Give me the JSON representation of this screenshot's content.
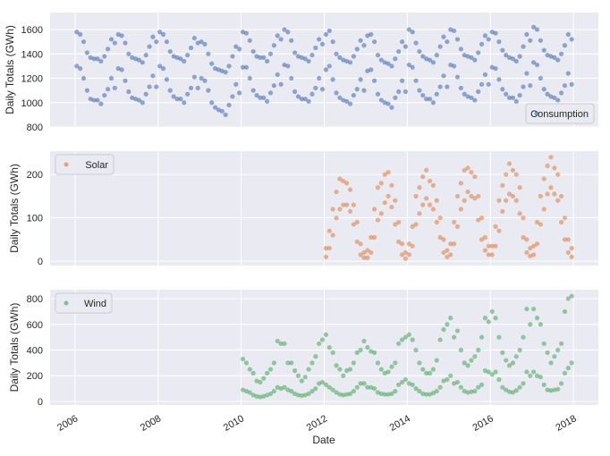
{
  "chart_data": [
    {
      "type": "scatter",
      "ylabel": "Daily Totals (GWh)",
      "xlabel": "",
      "ylim": [
        800,
        1740
      ],
      "yticks": [
        800,
        1000,
        1200,
        1400,
        1600
      ],
      "xlim": [
        2005.4,
        2018.6
      ],
      "grid": true,
      "legend": "bottom-right",
      "series": [
        {
          "name": "Consumption",
          "color": "#4c72b0",
          "monthly_weekday": {
            "2006": [
              1580,
              1560,
              1500,
              1410,
              1370,
              1360,
              1360,
              1340,
              1380,
              1440,
              1520,
              1490
            ],
            "2007": [
              1560,
              1550,
              1490,
              1400,
              1370,
              1360,
              1350,
              1330,
              1390,
              1460,
              1540,
              1500
            ],
            "2008": [
              1580,
              1560,
              1500,
              1420,
              1380,
              1370,
              1360,
              1340,
              1390,
              1450,
              1530,
              1490
            ],
            "2009": [
              1500,
              1480,
              1400,
              1320,
              1280,
              1270,
              1260,
              1250,
              1300,
              1380,
              1460,
              1440
            ],
            "2010": [
              1580,
              1570,
              1510,
              1420,
              1380,
              1370,
              1370,
              1340,
              1400,
              1470,
              1550,
              1520
            ],
            "2011": [
              1600,
              1580,
              1510,
              1410,
              1380,
              1370,
              1360,
              1340,
              1390,
              1450,
              1520,
              1480
            ],
            "2012": [
              1560,
              1590,
              1500,
              1400,
              1370,
              1350,
              1340,
              1330,
              1380,
              1440,
              1510,
              1470
            ],
            "2013": [
              1550,
              1560,
              1500,
              1390,
              1350,
              1330,
              1320,
              1300,
              1360,
              1420,
              1500,
              1460
            ],
            "2014": [
              1600,
              1580,
              1490,
              1420,
              1380,
              1360,
              1350,
              1330,
              1390,
              1460,
              1540,
              1500
            ],
            "2015": [
              1600,
              1590,
              1520,
              1440,
              1390,
              1380,
              1370,
              1350,
              1410,
              1480,
              1550,
              1520
            ],
            "2016": [
              1580,
              1570,
              1500,
              1430,
              1390,
              1370,
              1360,
              1340,
              1380,
              1460,
              1560,
              1510
            ],
            "2017": [
              1620,
              1600,
              1510,
              1430,
              1390,
              1380,
              1370,
              1350,
              1400,
              1470,
              1560,
              1520
            ]
          },
          "monthly_weekend": {
            "2006": [
              1300,
              1280,
              1200,
              1100,
              1030,
              1020,
              1020,
              990,
              1060,
              1110,
              1200,
              1120
            ],
            "2007": [
              1280,
              1270,
              1180,
              1090,
              1040,
              1030,
              1020,
              1000,
              1070,
              1130,
              1220,
              1130
            ],
            "2008": [
              1300,
              1280,
              1190,
              1100,
              1050,
              1030,
              1030,
              1000,
              1070,
              1120,
              1210,
              1120
            ],
            "2009": [
              1200,
              1180,
              1100,
              1000,
              960,
              940,
              930,
              900,
              980,
              1050,
              1150,
              1080
            ],
            "2010": [
              1290,
              1290,
              1200,
              1100,
              1060,
              1040,
              1040,
              1010,
              1080,
              1140,
              1230,
              1150
            ],
            "2011": [
              1310,
              1300,
              1200,
              1090,
              1050,
              1030,
              1030,
              1010,
              1070,
              1120,
              1200,
              1110
            ],
            "2012": [
              1270,
              1300,
              1190,
              1080,
              1040,
              1020,
              1010,
              990,
              1060,
              1110,
              1190,
              1100
            ],
            "2013": [
              1260,
              1270,
              1180,
              1070,
              1020,
              1000,
              990,
              960,
              1040,
              1090,
              1180,
              1090
            ],
            "2014": [
              1310,
              1290,
              1180,
              1100,
              1060,
              1030,
              1030,
              1000,
              1070,
              1130,
              1220,
              1130
            ],
            "2015": [
              1310,
              1300,
              1210,
              1120,
              1070,
              1050,
              1040,
              1020,
              1090,
              1150,
              1230,
              1150
            ],
            "2016": [
              1290,
              1280,
              1190,
              1110,
              1070,
              1040,
              1040,
              1010,
              1060,
              1130,
              1240,
              1140
            ],
            "2017": [
              1330,
              1310,
              1200,
              1110,
              1070,
              1050,
              1040,
              1020,
              1080,
              1140,
              1240,
              1150
            ]
          }
        }
      ]
    },
    {
      "type": "scatter",
      "ylabel": "Daily Totals (GWh)",
      "xlabel": "",
      "ylim": [
        -10,
        254
      ],
      "yticks": [
        0,
        100,
        200
      ],
      "xlim": [
        2005.4,
        2018.6
      ],
      "grid": true,
      "legend": "top-left",
      "series": [
        {
          "name": "Solar",
          "color": "#dd8452",
          "monthly_typical": {
            "2012": [
              10,
              30,
              60,
              100,
              120,
              130,
              130,
              115,
              85,
              45,
              15,
              8
            ],
            "2013": [
              8,
              20,
              55,
              95,
              110,
              135,
              150,
              125,
              85,
              45,
              15,
              6
            ],
            "2014": [
              15,
              35,
              85,
              110,
              130,
              145,
              130,
              120,
              90,
              55,
              20,
              10
            ],
            "2015": [
              15,
              40,
              80,
              120,
              140,
              160,
              150,
              145,
              95,
              50,
              25,
              15
            ],
            "2016": [
              15,
              35,
              70,
              115,
              140,
              155,
              150,
              140,
              110,
              55,
              20,
              12
            ],
            "2017": [
              15,
              40,
              85,
              120,
              155,
              170,
              155,
              140,
              90,
              50,
              20,
              10
            ]
          },
          "monthly_high": {
            "2012": [
              30,
              70,
              120,
              160,
              190,
              185,
              180,
              165,
              130,
              90,
              40,
              20
            ],
            "2013": [
              25,
              55,
              120,
              170,
              180,
              200,
              205,
              175,
              140,
              90,
              40,
              20
            ],
            "2014": [
              40,
              80,
              150,
              170,
              195,
              210,
              185,
              175,
              140,
              100,
              50,
              25
            ],
            "2015": [
              40,
              90,
              150,
              180,
              210,
              215,
              205,
              195,
              150,
              100,
              55,
              35
            ],
            "2016": [
              35,
              80,
              140,
              175,
              200,
              225,
              210,
              200,
              170,
              100,
              50,
              30
            ],
            "2017": [
              35,
              90,
              150,
              190,
              220,
              240,
              215,
              200,
              150,
              100,
              50,
              30
            ]
          }
        }
      ]
    },
    {
      "type": "scatter",
      "ylabel": "Daily Totals (GWh)",
      "xlabel": "Date",
      "ylim": [
        -28,
        870
      ],
      "yticks": [
        0,
        200,
        400,
        600,
        800
      ],
      "xlim": [
        2005.4,
        2018.6
      ],
      "xticks": [
        "2006",
        "2008",
        "2010",
        "2012",
        "2014",
        "2016",
        "2018"
      ],
      "grid": true,
      "legend": "top-left",
      "series": [
        {
          "name": "Wind",
          "color": "#55a868",
          "monthly_typical": {
            "2010": [
              90,
              80,
              70,
              50,
              40,
              35,
              40,
              50,
              60,
              80,
              110,
              100
            ],
            "2011": [
              110,
              90,
              80,
              60,
              50,
              45,
              50,
              60,
              80,
              100,
              140,
              150
            ],
            "2012": [
              130,
              110,
              90,
              70,
              55,
              50,
              55,
              60,
              80,
              110,
              140,
              140
            ],
            "2013": [
              110,
              110,
              100,
              70,
              60,
              55,
              55,
              60,
              80,
              130,
              150,
              170
            ],
            "2014": [
              140,
              130,
              100,
              80,
              60,
              55,
              55,
              65,
              80,
              110,
              160,
              170
            ],
            "2015": [
              200,
              140,
              150,
              110,
              80,
              70,
              75,
              80,
              110,
              130,
              240,
              230
            ],
            "2016": [
              210,
              230,
              170,
              110,
              90,
              75,
              70,
              85,
              110,
              140,
              230,
              200
            ],
            "2017": [
              230,
              200,
              190,
              130,
              90,
              85,
              90,
              95,
              140,
              220,
              260,
              300
            ]
          },
          "monthly_high": {
            "2010": [
              330,
              300,
              250,
              220,
              160,
              150,
              180,
              220,
              250,
              300,
              470,
              450
            ],
            "2011": [
              450,
              300,
              300,
              240,
              200,
              160,
              190,
              250,
              300,
              350,
              450,
              480
            ],
            "2012": [
              520,
              420,
              380,
              280,
              250,
              200,
              240,
              250,
              300,
              380,
              400,
              470
            ],
            "2013": [
              420,
              390,
              380,
              300,
              250,
              220,
              230,
              270,
              300,
              450,
              480,
              500
            ],
            "2014": [
              520,
              480,
              400,
              300,
              250,
              220,
              220,
              250,
              320,
              480,
              560,
              600
            ],
            "2015": [
              650,
              500,
              550,
              400,
              300,
              280,
              320,
              350,
              400,
              500,
              650,
              620
            ],
            "2016": [
              700,
              650,
              500,
              380,
              320,
              280,
              300,
              350,
              400,
              500,
              720,
              600
            ],
            "2017": [
              720,
              650,
              600,
              450,
              380,
              300,
              350,
              400,
              450,
              700,
              800,
              820
            ]
          }
        }
      ]
    }
  ]
}
